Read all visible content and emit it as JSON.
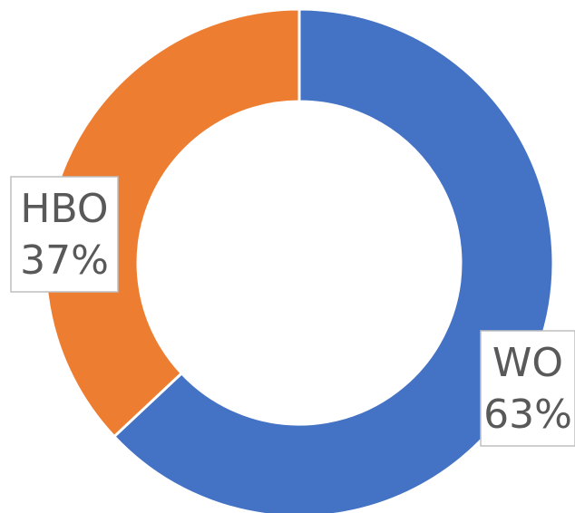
{
  "chart_data": {
    "type": "donut",
    "categories": [
      "WO",
      "HBO"
    ],
    "values": [
      63,
      37
    ],
    "value_labels": [
      "63%",
      "37%"
    ],
    "colors": [
      "#4472c4",
      "#ed7d31"
    ]
  }
}
